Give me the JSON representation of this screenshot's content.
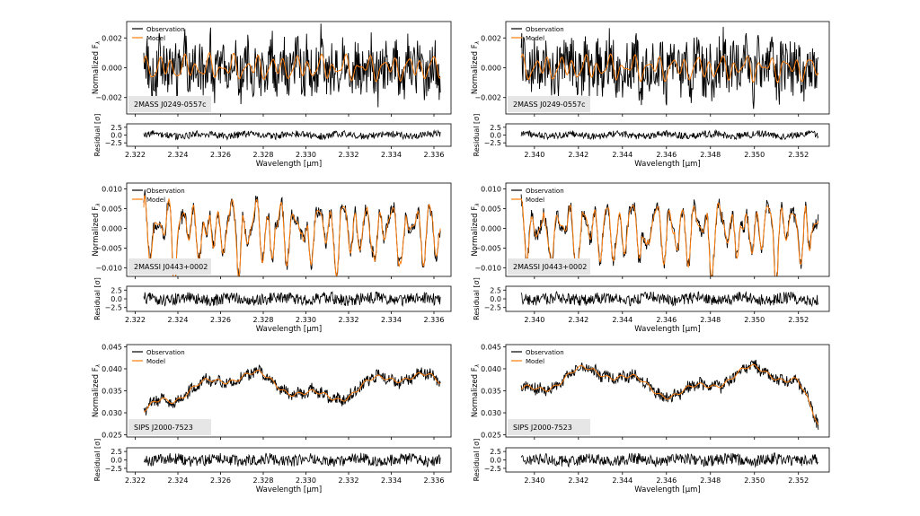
{
  "legend": {
    "observation": "Observation",
    "model": "Model"
  },
  "colors": {
    "observation": "#000000",
    "model": "#ff7f0e",
    "frame": "#000000",
    "label_box": "#e6e6e6"
  },
  "charts": [
    {
      "object": "2MASS J0249-0557c",
      "main_ylabel": "Normalized F",
      "main_ylabel_sub": "λ",
      "resid_ylabel": "Residual [σ]",
      "xlabel": "Wavelength [μm]",
      "x_range": [
        2.3216,
        2.3368
      ],
      "x_ticks": [
        "2.322",
        "2.324",
        "2.326",
        "2.328",
        "2.330",
        "2.332",
        "2.334",
        "2.336"
      ],
      "y_range": [
        -0.0031,
        0.0031
      ],
      "y_ticks": [
        "−0.002",
        "0.000",
        "0.002"
      ],
      "y_tick_values": [
        -0.002,
        0.0,
        0.002
      ],
      "resid_range": [
        -3.6,
        3.6
      ],
      "resid_ticks": [
        "2.5",
        "0.0",
        "−2.5"
      ],
      "resid_tick_values": [
        2.5,
        0.0,
        -2.5
      ],
      "data_x_range": [
        2.3224,
        2.3363
      ],
      "data_amplitude": 0.0022,
      "data_baseline": 0.0,
      "model_amplitude": 0.0009
    },
    {
      "object": "2MASS J0249-0557c",
      "main_ylabel": "Normalized F",
      "main_ylabel_sub": "λ",
      "resid_ylabel": "Residual [σ]",
      "xlabel": "Wavelength [μm]",
      "x_range": [
        2.3387,
        2.3534
      ],
      "x_ticks": [
        "2.340",
        "2.342",
        "2.344",
        "2.346",
        "2.348",
        "2.350",
        "2.352"
      ],
      "y_range": [
        -0.0031,
        0.0031
      ],
      "y_ticks": [
        "−0.002",
        "0.000",
        "0.002"
      ],
      "y_tick_values": [
        -0.002,
        0.0,
        0.002
      ],
      "resid_range": [
        -3.6,
        3.6
      ],
      "resid_ticks": [
        "2.5",
        "0.0",
        "−2.5"
      ],
      "resid_tick_values": [
        2.5,
        0.0,
        -2.5
      ],
      "data_x_range": [
        2.3394,
        2.3529
      ],
      "data_amplitude": 0.0022,
      "data_baseline": 0.0,
      "model_amplitude": 0.0009
    },
    {
      "object": "2MASSI J0443+0002",
      "main_ylabel": "Normalized F",
      "main_ylabel_sub": "λ",
      "resid_ylabel": "Residual [σ]",
      "xlabel": "Wavelength [μm]",
      "x_range": [
        2.3216,
        2.3368
      ],
      "x_ticks": [
        "2.322",
        "2.324",
        "2.326",
        "2.328",
        "2.330",
        "2.332",
        "2.334",
        "2.336"
      ],
      "y_range": [
        -0.0122,
        0.0115
      ],
      "y_ticks": [
        "−0.010",
        "−0.005",
        "0.000",
        "0.005",
        "0.010"
      ],
      "y_tick_values": [
        -0.01,
        -0.005,
        0.0,
        0.005,
        0.01
      ],
      "resid_range": [
        -3.6,
        3.6
      ],
      "resid_ticks": [
        "2.5",
        "0.0",
        "−2.5"
      ],
      "resid_tick_values": [
        2.5,
        0.0,
        -2.5
      ],
      "data_x_range": [
        2.3224,
        2.3363
      ],
      "data_amplitude": 0.0085,
      "data_baseline": 0.0,
      "model_amplitude": 0.0085
    },
    {
      "object": "2MASSI J0443+0002",
      "main_ylabel": "Normalized F",
      "main_ylabel_sub": "λ",
      "resid_ylabel": "Residual [σ]",
      "xlabel": "Wavelength [μm]",
      "x_range": [
        2.3387,
        2.3534
      ],
      "x_ticks": [
        "2.340",
        "2.342",
        "2.344",
        "2.346",
        "2.348",
        "2.350",
        "2.352"
      ],
      "y_range": [
        -0.0122,
        0.0115
      ],
      "y_ticks": [
        "−0.010",
        "−0.005",
        "0.000",
        "0.005",
        "0.010"
      ],
      "y_tick_values": [
        -0.01,
        -0.005,
        0.0,
        0.005,
        0.01
      ],
      "resid_range": [
        -3.6,
        3.6
      ],
      "resid_ticks": [
        "2.5",
        "0.0",
        "−2.5"
      ],
      "resid_tick_values": [
        2.5,
        0.0,
        -2.5
      ],
      "data_x_range": [
        2.3394,
        2.3529
      ],
      "data_amplitude": 0.0085,
      "data_baseline": 0.0,
      "model_amplitude": 0.0085
    },
    {
      "object": "SIPS J2000-7523",
      "main_ylabel": "Normalized F",
      "main_ylabel_sub": "λ",
      "resid_ylabel": "Residual [σ]",
      "xlabel": "Wavelength [μm]",
      "x_range": [
        2.3216,
        2.3368
      ],
      "x_ticks": [
        "2.322",
        "2.324",
        "2.326",
        "2.328",
        "2.330",
        "2.332",
        "2.334",
        "2.336"
      ],
      "y_range": [
        0.0245,
        0.0455
      ],
      "y_ticks": [
        "0.025",
        "0.030",
        "0.035",
        "0.040",
        "0.045"
      ],
      "y_tick_values": [
        0.025,
        0.03,
        0.035,
        0.04,
        0.045
      ],
      "resid_range": [
        -3.6,
        3.6
      ],
      "resid_ticks": [
        "2.5",
        "0.0",
        "−2.5"
      ],
      "resid_tick_values": [
        2.5,
        0.0,
        -2.5
      ],
      "data_x_range": [
        2.3224,
        2.3363
      ],
      "data_amplitude": 0.0015,
      "data_baseline": 0.036,
      "model_amplitude": 0.0004
    },
    {
      "object": "SIPS J2000-7523",
      "main_ylabel": "Normalized F",
      "main_ylabel_sub": "λ",
      "resid_ylabel": "Residual [σ]",
      "xlabel": "Wavelength [μm]",
      "x_range": [
        2.3387,
        2.3534
      ],
      "x_ticks": [
        "2.340",
        "2.342",
        "2.344",
        "2.346",
        "2.348",
        "2.350",
        "2.352"
      ],
      "y_range": [
        0.0245,
        0.0455
      ],
      "y_ticks": [
        "0.025",
        "0.030",
        "0.035",
        "0.040",
        "0.045"
      ],
      "y_tick_values": [
        0.025,
        0.03,
        0.035,
        0.04,
        0.045
      ],
      "resid_range": [
        -3.6,
        3.6
      ],
      "resid_ticks": [
        "2.5",
        "0.0",
        "−2.5"
      ],
      "resid_tick_values": [
        2.5,
        0.0,
        -2.5
      ],
      "data_x_range": [
        2.3394,
        2.3529
      ],
      "data_amplitude": 0.0015,
      "data_baseline": 0.037,
      "model_amplitude": 0.0004
    }
  ],
  "chart_data": [
    {
      "type": "line",
      "title": "",
      "xlabel": "Wavelength [μm]",
      "ylabel": "Normalized F_λ",
      "series": [
        {
          "name": "Observation"
        },
        {
          "name": "Model"
        }
      ],
      "xlim": [
        2.3216,
        2.3368
      ],
      "ylim": [
        -0.0031,
        0.0031
      ]
    },
    {
      "type": "line",
      "title": "",
      "xlabel": "Wavelength [μm]",
      "ylabel": "Normalized F_λ",
      "series": [
        {
          "name": "Observation"
        },
        {
          "name": "Model"
        }
      ],
      "xlim": [
        2.3387,
        2.3534
      ],
      "ylim": [
        -0.0031,
        0.0031
      ]
    },
    {
      "type": "line",
      "title": "",
      "xlabel": "Wavelength [μm]",
      "ylabel": "Normalized F_λ",
      "series": [
        {
          "name": "Observation"
        },
        {
          "name": "Model"
        }
      ],
      "xlim": [
        2.3216,
        2.3368
      ],
      "ylim": [
        -0.0122,
        0.0115
      ]
    },
    {
      "type": "line",
      "title": "",
      "xlabel": "Wavelength [μm]",
      "ylabel": "Normalized F_λ",
      "series": [
        {
          "name": "Observation"
        },
        {
          "name": "Model"
        }
      ],
      "xlim": [
        2.3387,
        2.3534
      ],
      "ylim": [
        -0.0122,
        0.0115
      ]
    },
    {
      "type": "line",
      "title": "",
      "xlabel": "Wavelength [μm]",
      "ylabel": "Normalized F_λ",
      "series": [
        {
          "name": "Observation"
        },
        {
          "name": "Model"
        }
      ],
      "xlim": [
        2.3216,
        2.3368
      ],
      "ylim": [
        0.0245,
        0.0455
      ]
    },
    {
      "type": "line",
      "title": "",
      "xlabel": "Wavelength [μm]",
      "ylabel": "Normalized F_λ",
      "series": [
        {
          "name": "Observation"
        },
        {
          "name": "Model"
        }
      ],
      "xlim": [
        2.3387,
        2.3534
      ],
      "ylim": [
        0.0245,
        0.0455
      ]
    }
  ]
}
